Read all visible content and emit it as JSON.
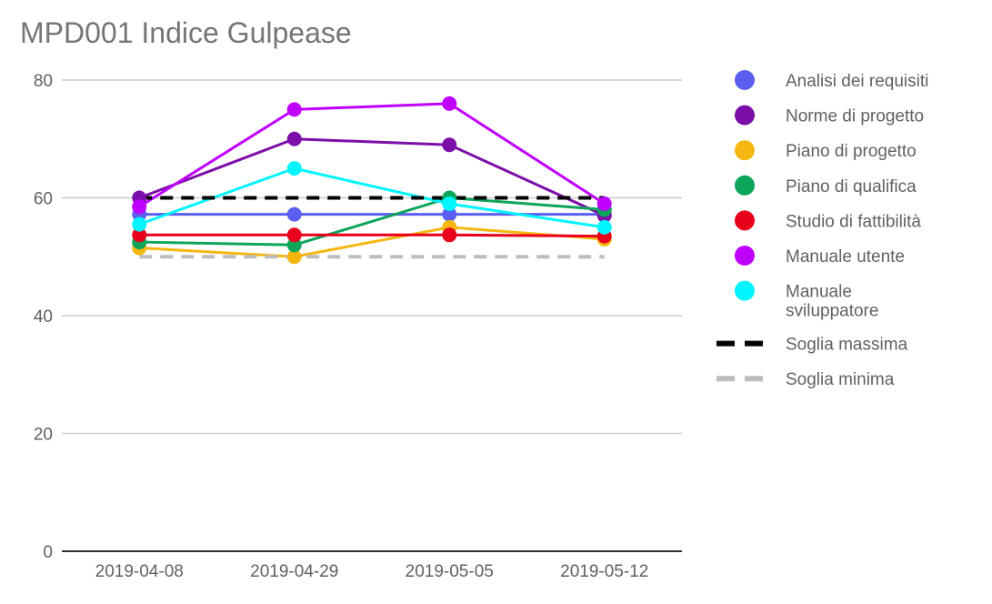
{
  "chart_data": {
    "type": "line",
    "title": "MPD001 Indice Gulpease",
    "xlabel": "",
    "ylabel": "",
    "categories": [
      "2019-04-08",
      "2019-04-29",
      "2019-05-05",
      "2019-05-12"
    ],
    "ylim": [
      0,
      80
    ],
    "yticks": [
      0,
      20,
      40,
      60,
      80
    ],
    "grid": true,
    "legend_position": "right",
    "series": [
      {
        "name": "Analisi dei requisiti",
        "color": "#5b5ff0",
        "values": [
          57.2,
          57.2,
          57.2,
          57.2
        ],
        "style": "solid",
        "markers": true
      },
      {
        "name": "Norme di progetto",
        "color": "#7b0fa8",
        "values": [
          60,
          70,
          69,
          57
        ],
        "style": "solid",
        "markers": true
      },
      {
        "name": "Piano di progetto",
        "color": "#f5b710",
        "values": [
          51.5,
          50,
          55,
          53
        ],
        "style": "solid",
        "markers": true
      },
      {
        "name": "Piano di qualifica",
        "color": "#0ca55a",
        "values": [
          52.5,
          52,
          60,
          58
        ],
        "style": "solid",
        "markers": true
      },
      {
        "name": "Studio di fattibilità",
        "color": "#e8001c",
        "values": [
          53.7,
          53.7,
          53.7,
          53.5
        ],
        "style": "solid",
        "markers": true
      },
      {
        "name": "Manuale utente",
        "color": "#bf00ff",
        "values": [
          58.5,
          75,
          76,
          59
        ],
        "style": "solid",
        "markers": true
      },
      {
        "name": "Manuale sviluppatore",
        "color": "#00f5ff",
        "values": [
          55.5,
          65,
          59,
          55
        ],
        "style": "solid",
        "markers": true
      },
      {
        "name": "Soglia massima",
        "color": "#000000",
        "values": [
          60,
          60,
          60,
          60
        ],
        "style": "dashed",
        "markers": false
      },
      {
        "name": "Soglia minima",
        "color": "#bdbdbd",
        "values": [
          50,
          50,
          50,
          50
        ],
        "style": "dashed",
        "markers": false
      }
    ]
  }
}
